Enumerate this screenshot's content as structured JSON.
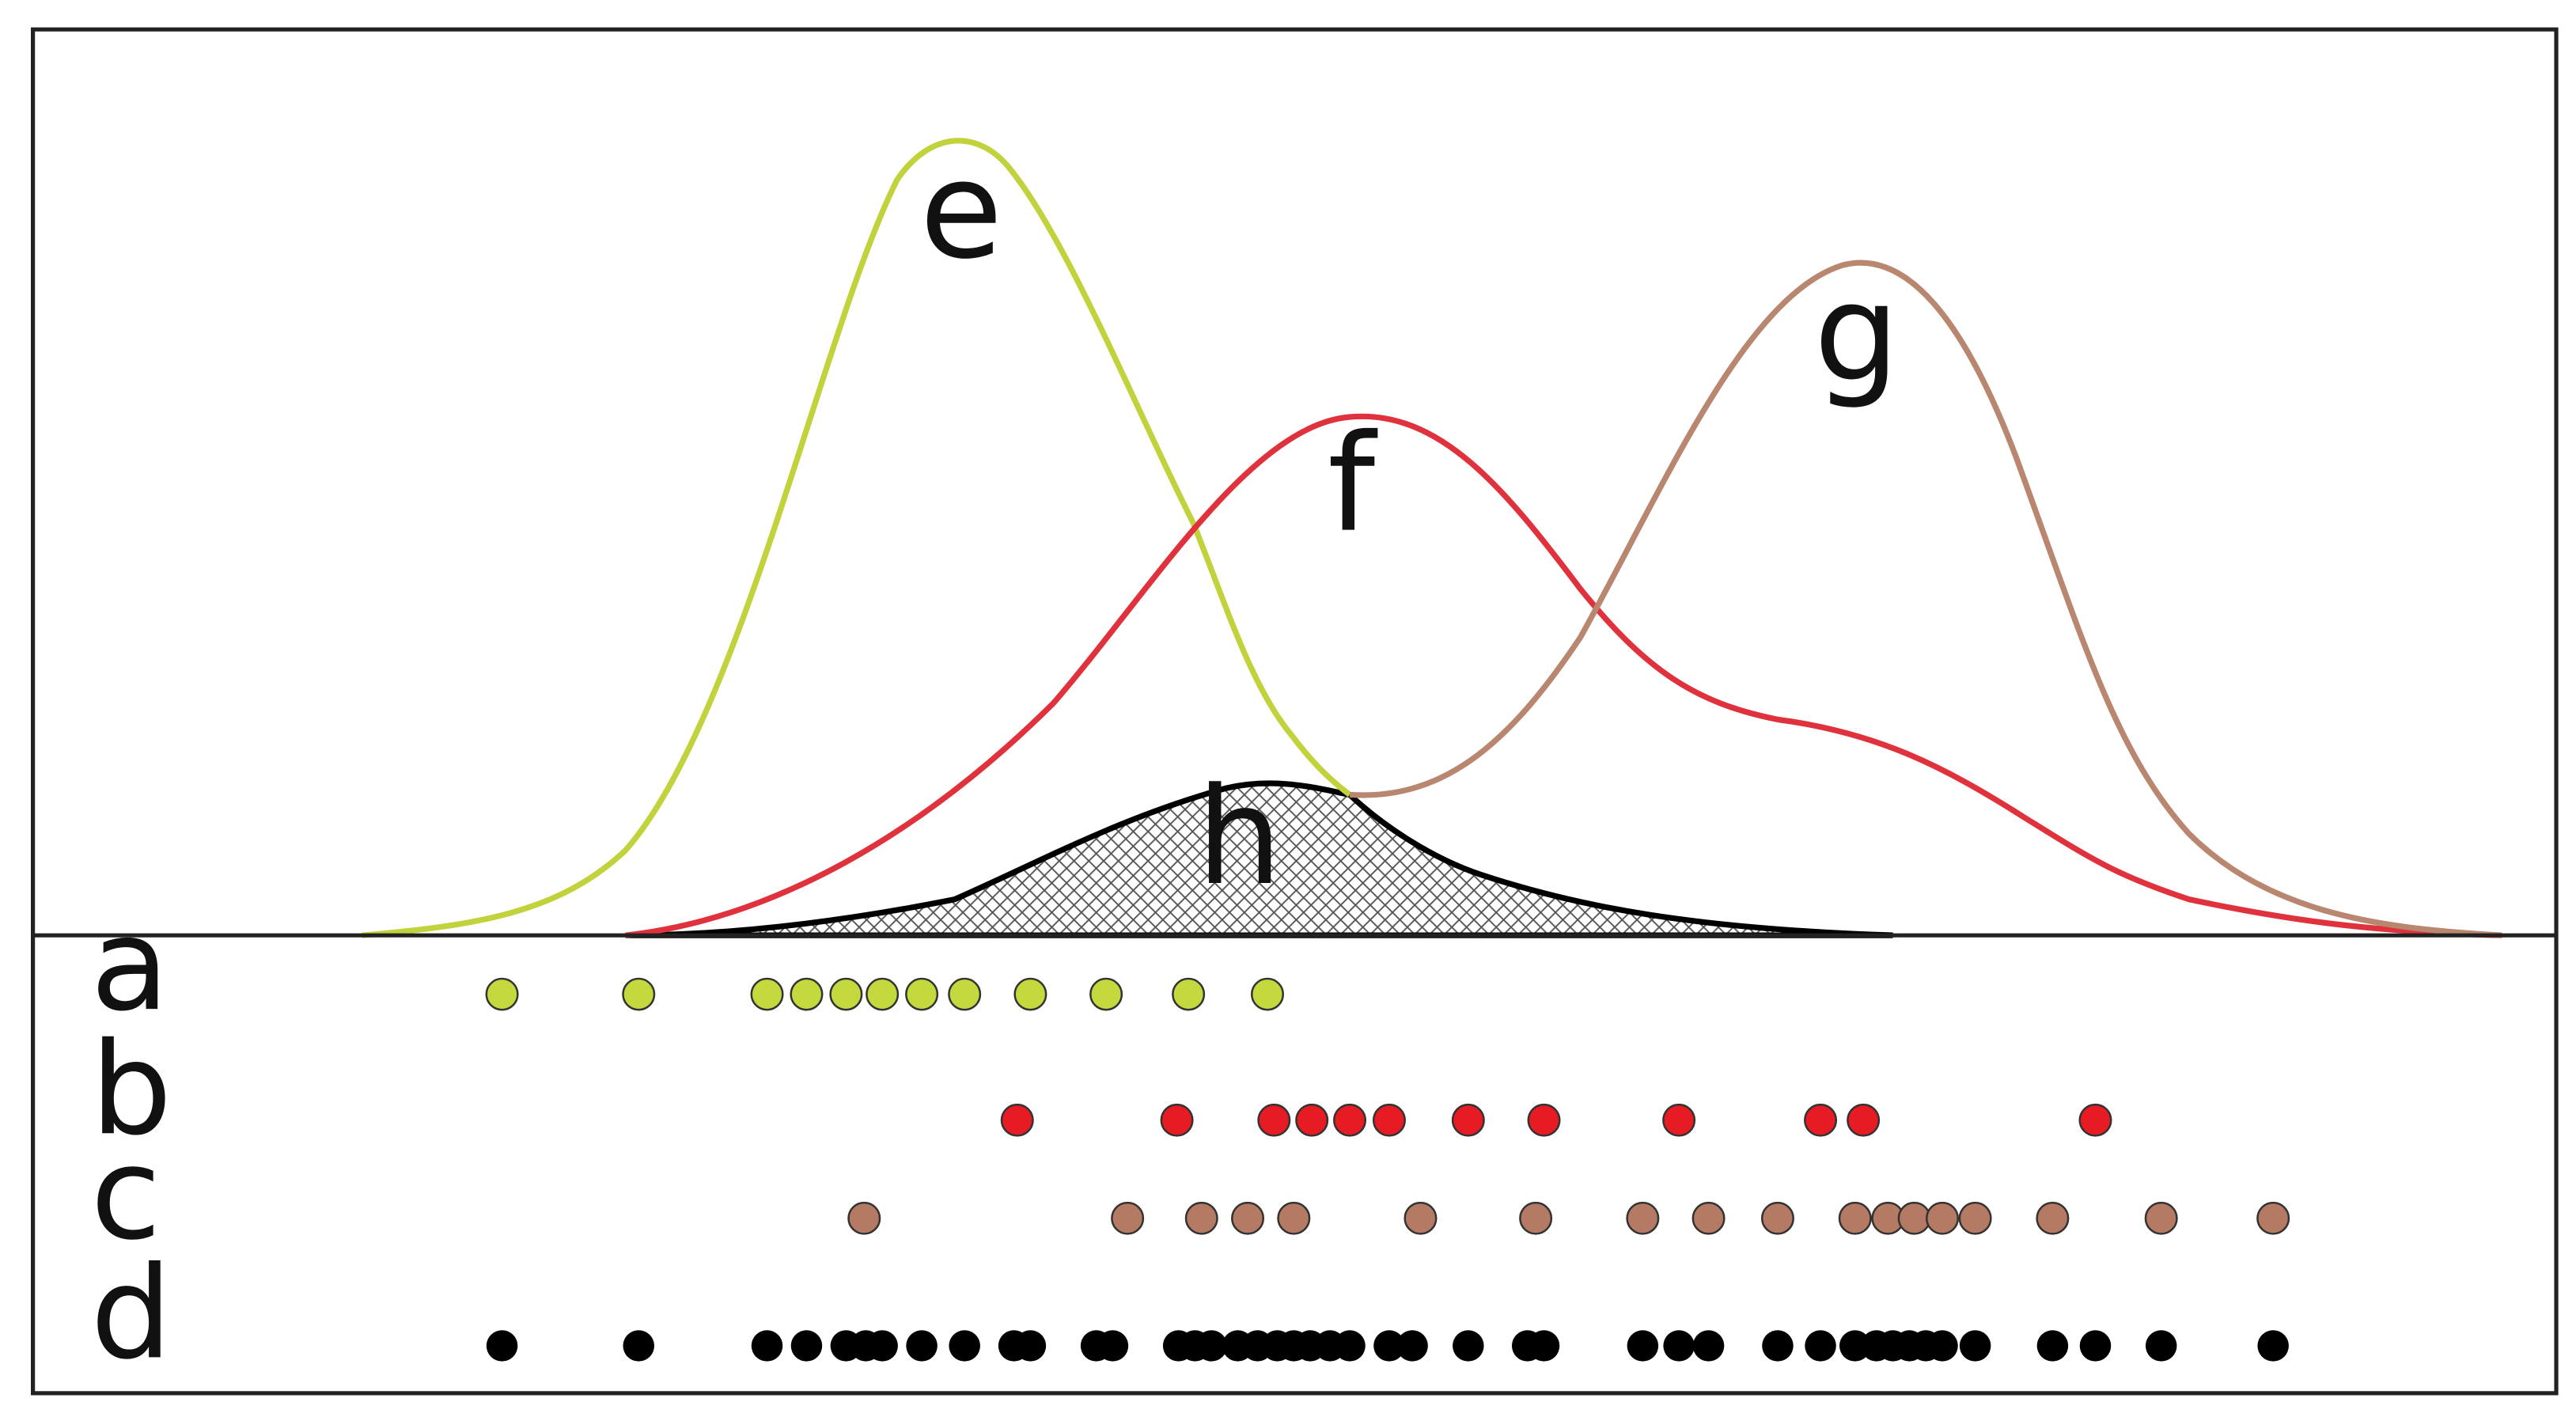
{
  "colors": {
    "e": "#c2d23c",
    "f": "#e0323c",
    "g": "#b98670",
    "h": "#000000",
    "dot_a": "#c3d93e",
    "dot_b": "#e61b23",
    "dot_c": "#b47a63",
    "dot_d": "#000000",
    "frame": "#222222"
  },
  "curves": [
    {
      "key": "e",
      "label": "e",
      "color_key": "e"
    },
    {
      "key": "f",
      "label": "f",
      "color_key": "f"
    },
    {
      "key": "g",
      "label": "g",
      "color_key": "g"
    },
    {
      "key": "h",
      "label": "h",
      "color_key": "h",
      "fill": "crosshatch"
    }
  ],
  "rows": [
    {
      "key": "a",
      "label": "a",
      "color_key": "dot_a",
      "outline": true
    },
    {
      "key": "b",
      "label": "b",
      "color_key": "dot_b",
      "outline": true
    },
    {
      "key": "c",
      "label": "c",
      "color_key": "dot_c",
      "outline": true
    },
    {
      "key": "d",
      "label": "d",
      "color_key": "dot_d",
      "outline": false
    }
  ],
  "dot_positions": {
    "a": [
      305,
      388,
      466,
      490,
      514,
      536,
      560,
      586,
      626,
      672,
      722,
      770
    ],
    "b": [
      618,
      715,
      774,
      797,
      820,
      844,
      892,
      938,
      1020,
      1106,
      1132,
      1273
    ],
    "c": [
      525,
      685,
      730,
      758,
      786,
      863,
      933,
      998,
      1038,
      1080,
      1127,
      1147,
      1163,
      1180,
      1200,
      1247,
      1313,
      1381
    ],
    "d": [
      305,
      388,
      466,
      490,
      514,
      526,
      536,
      560,
      586,
      616,
      626,
      666,
      676,
      716,
      726,
      736,
      752,
      764,
      776,
      786,
      796,
      808,
      820,
      844,
      858,
      892,
      928,
      938,
      998,
      1020,
      1038,
      1080,
      1106,
      1127,
      1140,
      1150,
      1160,
      1170,
      1180,
      1200,
      1247,
      1273,
      1313,
      1381
    ]
  }
}
